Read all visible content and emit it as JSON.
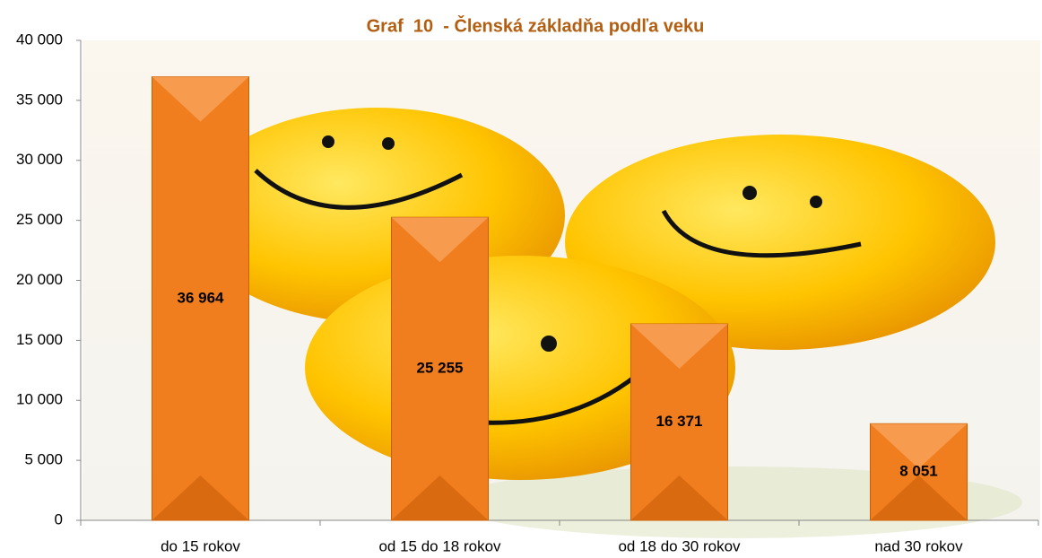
{
  "chart_data": {
    "type": "bar",
    "title": "Graf  10  - Členská základňa podľa veku",
    "categories": [
      "do 15 rokov",
      "od 15 do 18 rokov",
      "od 18 do 30 rokov",
      "nad 30 rokov"
    ],
    "values": [
      36964,
      25255,
      16371,
      8051
    ],
    "value_labels": [
      "36 964",
      "25 255",
      "16 371",
      "8 051"
    ],
    "color": "#f07d1e",
    "ylim": [
      0,
      40000
    ],
    "yticks": [
      0,
      {
        "value": 5000,
        "label": "5 000"
      },
      {
        "value": 10000,
        "label": "10 000"
      },
      {
        "value": 15000,
        "label": "15 000"
      },
      {
        "value": 20000,
        "label": "20 000"
      },
      {
        "value": 25000,
        "label": "25 000"
      },
      {
        "value": 30000,
        "label": "30 000"
      },
      {
        "value": 35000,
        "label": "35 000"
      },
      {
        "value": 40000,
        "label": "40 000"
      }
    ],
    "grid": false
  }
}
